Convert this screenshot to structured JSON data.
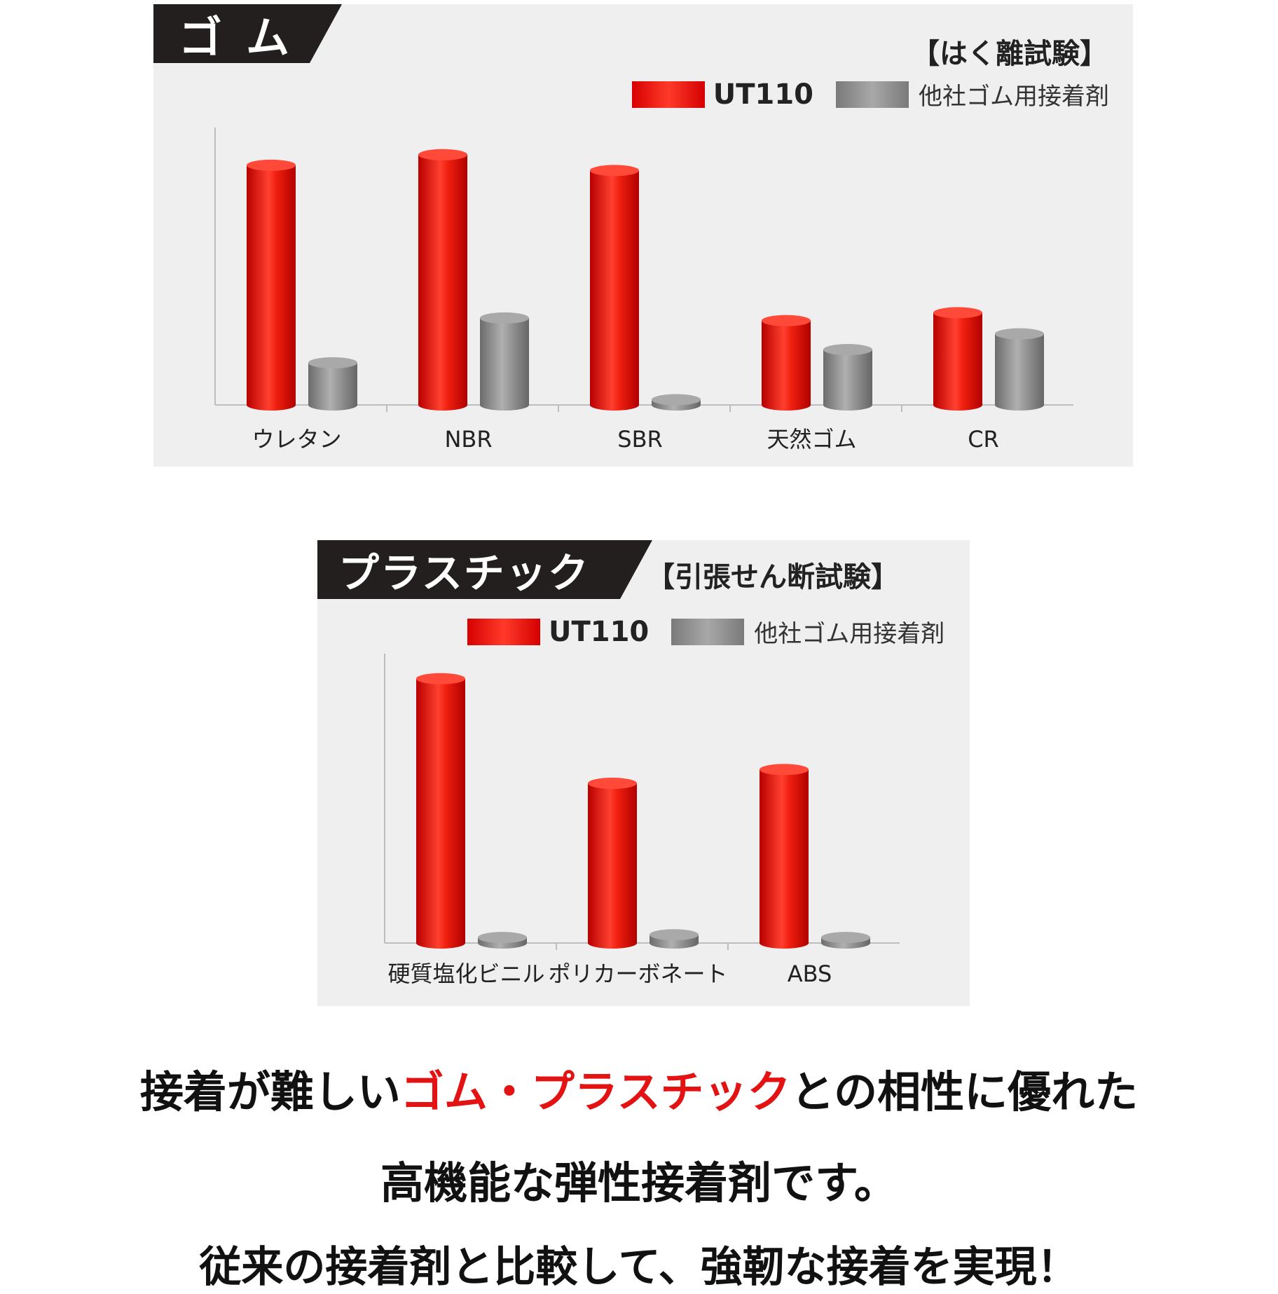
{
  "rubber_panel": {
    "tag": "ゴム",
    "test_name": "【はく離試験】",
    "legend": {
      "ut": "UT110",
      "other": "他社ゴム用接着剤"
    }
  },
  "plastic_panel": {
    "tag": "プラスチック",
    "test_name": "【引張せん断試験】",
    "legend": {
      "ut": "UT110",
      "other": "他社ゴム用接着剤"
    }
  },
  "colors": {
    "ut110": "#e01010",
    "other": "#8c8c8c",
    "accent": "#e31313"
  },
  "chart_data": [
    {
      "type": "bar",
      "categories": [
        "ウレタン",
        "NBR",
        "SBR",
        "天然ゴム",
        "CR"
      ],
      "series": [
        {
          "name": "UT110",
          "values": [
            91,
            95,
            89,
            32,
            35
          ]
        },
        {
          "name": "他社ゴム用接着剤",
          "values": [
            16,
            33,
            2,
            21,
            27
          ]
        }
      ],
      "ylim": [
        0,
        100
      ]
    },
    {
      "type": "bar",
      "categories": [
        "硬質塩化ビニル",
        "ポリカーボネート",
        "ABS"
      ],
      "series": [
        {
          "name": "UT110",
          "values": [
            96,
            58,
            63
          ]
        },
        {
          "name": "他社ゴム用接着剤",
          "values": [
            2,
            3,
            2
          ]
        }
      ],
      "ylim": [
        0,
        100
      ]
    }
  ],
  "caption": {
    "line1_a": "接着が難しい",
    "line1_red": "ゴム・プラスチック",
    "line1_b": "との相性に優れた",
    "line2": "高機能な弾性接着剤です。",
    "line3": "従来の接着剤と比較して、強靭な接着を実現！"
  }
}
